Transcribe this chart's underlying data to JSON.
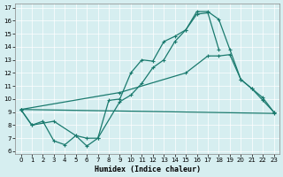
{
  "xlabel": "Humidex (Indice chaleur)",
  "bg_color": "#d6eef0",
  "line_color": "#1a7a6e",
  "xlim": [
    -0.5,
    23.5
  ],
  "ylim": [
    5.8,
    17.3
  ],
  "xticks": [
    0,
    1,
    2,
    3,
    4,
    5,
    6,
    7,
    8,
    9,
    10,
    11,
    12,
    13,
    14,
    15,
    16,
    17,
    18,
    19,
    20,
    21,
    22,
    23
  ],
  "yticks": [
    6,
    7,
    8,
    9,
    10,
    11,
    12,
    13,
    14,
    15,
    16,
    17
  ],
  "line1_x": [
    0,
    1,
    2,
    3,
    4,
    5,
    6,
    7,
    8,
    9,
    10,
    11,
    12,
    13,
    14,
    15,
    16,
    17,
    18
  ],
  "line1_y": [
    9.2,
    8.0,
    8.3,
    6.8,
    6.5,
    7.2,
    7.0,
    7.0,
    9.9,
    10.0,
    12.0,
    13.0,
    12.9,
    14.4,
    14.8,
    15.3,
    16.5,
    16.6,
    13.8
  ],
  "line2_x": [
    0,
    1,
    3,
    5,
    6,
    7,
    9,
    10,
    11,
    12,
    13,
    14,
    15,
    16,
    17,
    18,
    19,
    20,
    21,
    22,
    23
  ],
  "line2_y": [
    9.2,
    8.0,
    8.3,
    7.2,
    6.4,
    7.0,
    9.8,
    10.3,
    11.2,
    12.4,
    13.0,
    14.4,
    15.3,
    16.7,
    16.7,
    16.1,
    13.8,
    11.5,
    10.8,
    9.9,
    9.0
  ],
  "line3_x": [
    0,
    9,
    15,
    17,
    18,
    19,
    20,
    21,
    22,
    23
  ],
  "line3_y": [
    9.2,
    10.5,
    12.0,
    13.3,
    13.3,
    13.4,
    11.5,
    10.8,
    10.1,
    9.0
  ],
  "line4_x": [
    0,
    23
  ],
  "line4_y": [
    9.2,
    8.9
  ]
}
